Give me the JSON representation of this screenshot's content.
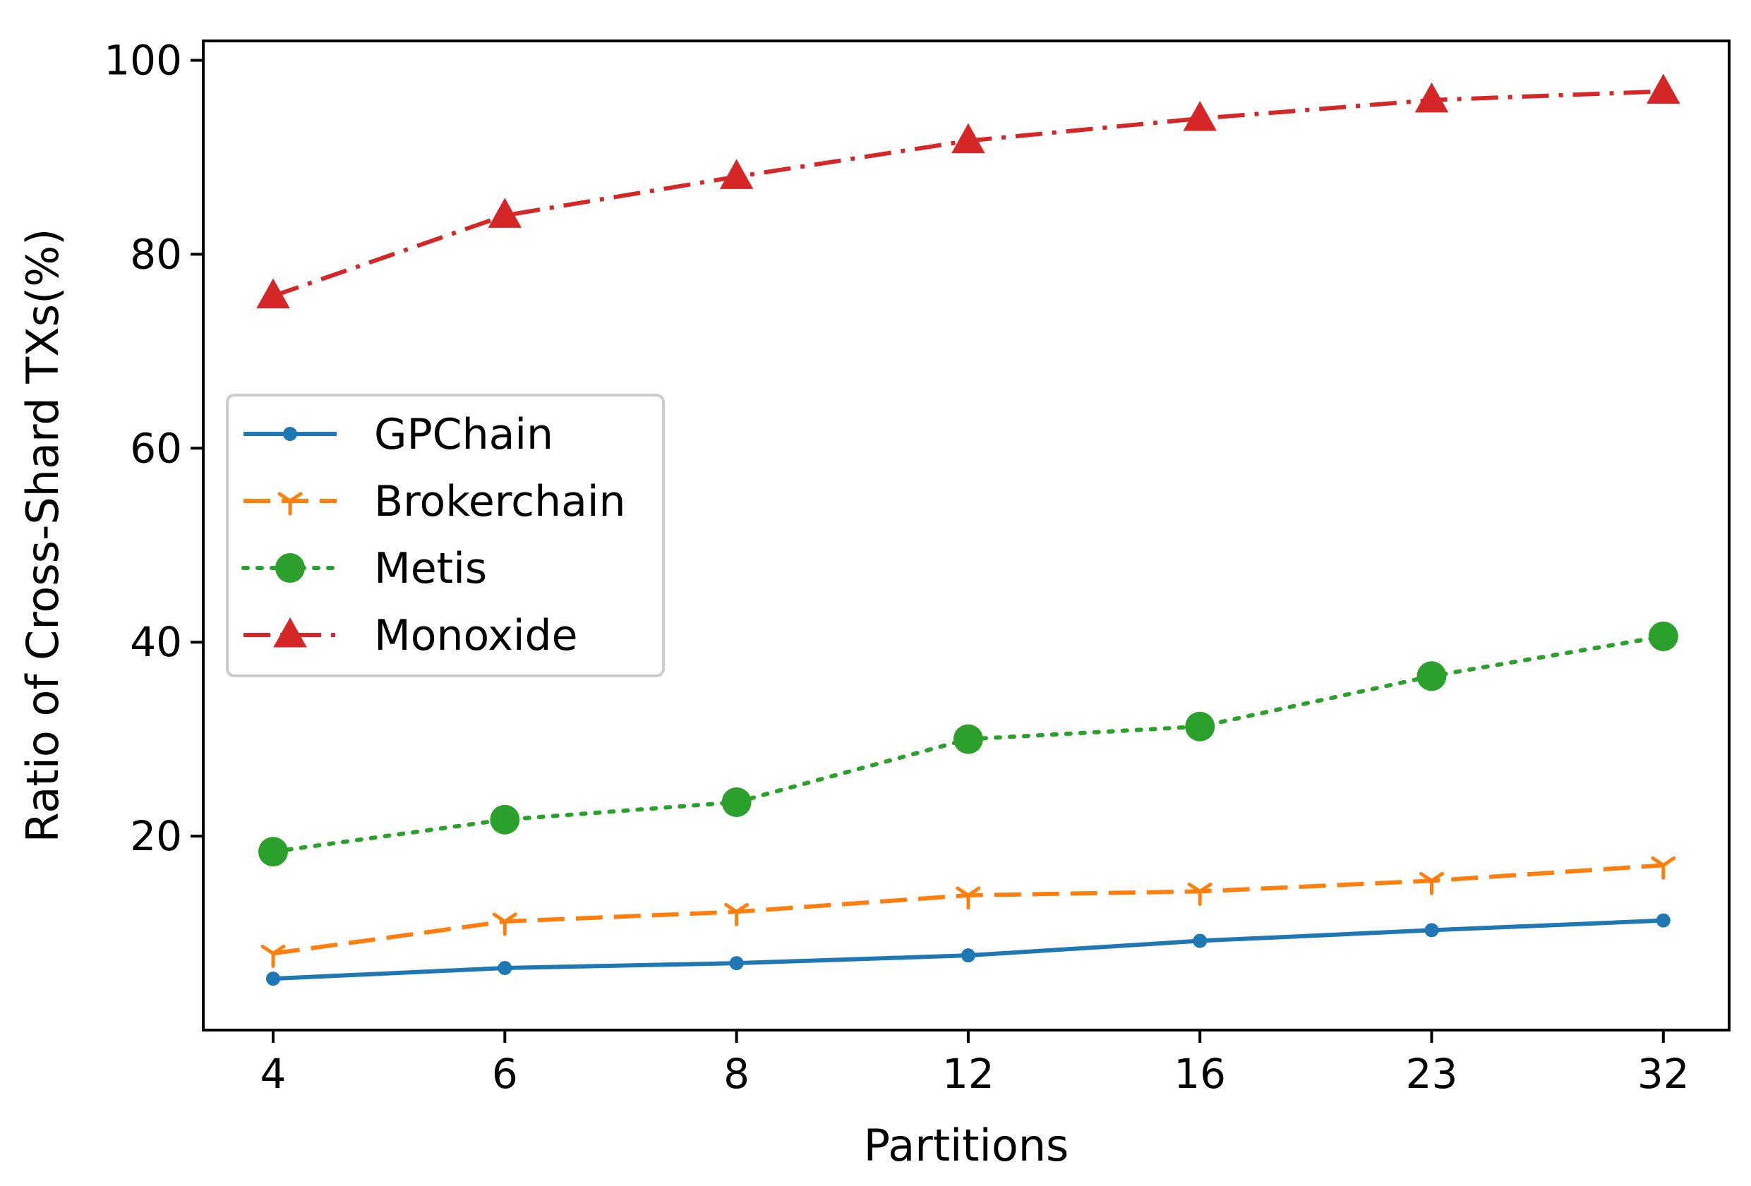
{
  "chart_data": {
    "type": "line",
    "title": "",
    "xlabel": "Partitions",
    "ylabel": "Ratio of Cross-Shard TXs(%)",
    "categories": [
      "4",
      "6",
      "8",
      "12",
      "16",
      "23",
      "32"
    ],
    "ylim": [
      0,
      102
    ],
    "yticks": [
      20,
      40,
      60,
      80,
      100
    ],
    "grid": false,
    "legend_position": "center-left",
    "series": [
      {
        "name": "GPChain",
        "color": "#1f77b4",
        "dash": "solid",
        "marker": "dot",
        "values": [
          5.3,
          6.4,
          6.9,
          7.7,
          9.2,
          10.3,
          11.3
        ]
      },
      {
        "name": "Brokerchain",
        "color": "#ff7f0e",
        "dash": "dashed",
        "marker": "tri-down",
        "values": [
          7.9,
          11.2,
          12.2,
          13.9,
          14.3,
          15.4,
          17.0
        ]
      },
      {
        "name": "Metis",
        "color": "#2ca02c",
        "dash": "dotted",
        "marker": "circle",
        "values": [
          18.4,
          21.7,
          23.5,
          30.0,
          31.3,
          36.5,
          40.6
        ]
      },
      {
        "name": "Monoxide",
        "color": "#d62728",
        "dash": "dashdot",
        "marker": "triangle",
        "values": [
          75.7,
          84.0,
          88.0,
          91.7,
          94.0,
          95.9,
          96.8
        ]
      }
    ]
  }
}
